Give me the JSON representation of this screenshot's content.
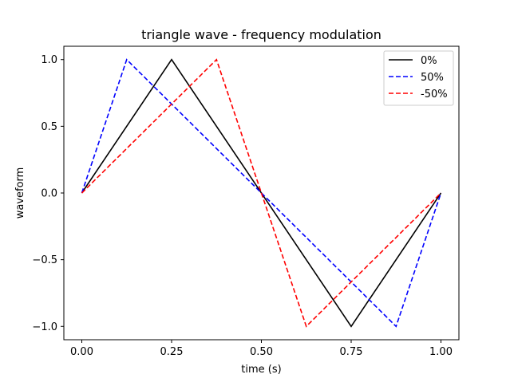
{
  "chart_data": {
    "type": "line",
    "title": "triangle wave - frequency modulation",
    "xlabel": "time (s)",
    "ylabel": "waveform",
    "xlim": [
      -0.05,
      1.05
    ],
    "ylim": [
      -1.1,
      1.1
    ],
    "xticks": [
      0.0,
      0.25,
      0.5,
      0.75,
      1.0
    ],
    "xtick_labels": [
      "0.00",
      "0.25",
      "0.50",
      "0.75",
      "1.00"
    ],
    "yticks": [
      -1.0,
      -0.5,
      0.0,
      0.5,
      1.0
    ],
    "ytick_labels": [
      "−1.0",
      "−0.5",
      "0.0",
      "0.5",
      "1.0"
    ],
    "grid": false,
    "legend_position": "top-right",
    "series": [
      {
        "name": "0%",
        "color": "#000000",
        "dash": "solid",
        "x": [
          0.0,
          0.25,
          0.75,
          1.0
        ],
        "y": [
          0.0,
          1.0,
          -1.0,
          0.0
        ]
      },
      {
        "name": "50%",
        "color": "#0000ff",
        "dash": "dashed",
        "x": [
          0.0,
          0.125,
          0.875,
          1.0
        ],
        "y": [
          0.0,
          1.0,
          -1.0,
          0.0
        ]
      },
      {
        "name": "-50%",
        "color": "#ff0000",
        "dash": "dashed",
        "x": [
          0.0,
          0.375,
          0.625,
          1.0
        ],
        "y": [
          0.0,
          1.0,
          -1.0,
          0.0
        ]
      }
    ]
  }
}
